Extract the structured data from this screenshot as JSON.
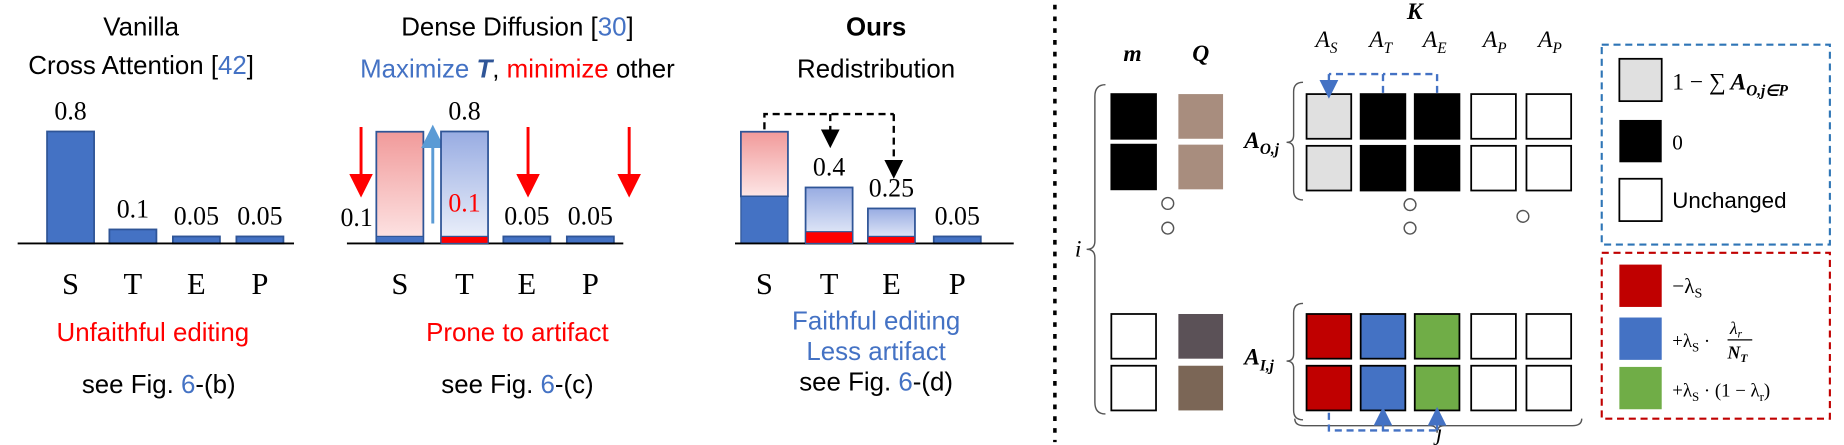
{
  "panels": [
    {
      "title_lines": [
        [
          "Vanilla"
        ],
        [
          "Cross Attention [",
          "42",
          "]"
        ]
      ],
      "categories": [
        "S",
        "T",
        "E",
        "P"
      ],
      "values": [
        0.8,
        0.1,
        0.05,
        0.05
      ],
      "caption": [
        "Unfaithful editing"
      ],
      "see": [
        "see Fig. ",
        "6",
        "-(b)"
      ]
    },
    {
      "title_lines": [
        [
          "Dense Diffusion [",
          "30",
          "]"
        ],
        [
          "Maximize ",
          "T",
          ", ",
          "minimize",
          " other"
        ]
      ],
      "categories": [
        "S",
        "T",
        "E",
        "P"
      ],
      "values": [
        0.1,
        0.8,
        0.05,
        0.05
      ],
      "inner_label": 0.1,
      "caption": [
        "Prone to artifact"
      ],
      "see": [
        "see Fig. ",
        "6",
        "-(c)"
      ]
    },
    {
      "title_lines": [
        [
          "Ours"
        ],
        [
          "Redistribution"
        ]
      ],
      "categories": [
        "S",
        "T",
        "E",
        "P"
      ],
      "values": [
        null,
        0.4,
        0.25,
        0.05
      ],
      "caption": [
        "Faithful editing",
        "Less artifact"
      ],
      "see": [
        "see Fig. ",
        "6",
        "-(d)"
      ]
    }
  ],
  "diagram": {
    "m": "m",
    "Q": "Q",
    "K": "K",
    "i": "i",
    "j": "j",
    "columns": [
      {
        "base": "A",
        "sub": "S"
      },
      {
        "base": "A",
        "sub": "T"
      },
      {
        "base": "A",
        "sub": "E"
      },
      {
        "base": "A",
        "sub": "P"
      },
      {
        "base": "A",
        "sub": "P"
      }
    ],
    "rows": [
      {
        "base": "A",
        "sub": "O,j"
      },
      {
        "base": "A",
        "sub": "I,j"
      }
    ],
    "legend_top": [
      {
        "text": "1 − ∑",
        "base": "A",
        "sub": "O,j∈P"
      },
      {
        "text": "0"
      },
      {
        "text": "Unchanged"
      }
    ],
    "legend_bottom": [
      {
        "text": "−λ",
        "sub": "S"
      },
      {
        "text": "+λ",
        "sub": "S",
        "op": " ·",
        "num": "λ",
        "num_sub": "r",
        "den": "N",
        "den_sub": "T"
      },
      {
        "text": "+λ",
        "sub": "S",
        "rest": " · (1 − λ",
        "rest_sub": "r",
        "close": ")"
      }
    ]
  }
}
